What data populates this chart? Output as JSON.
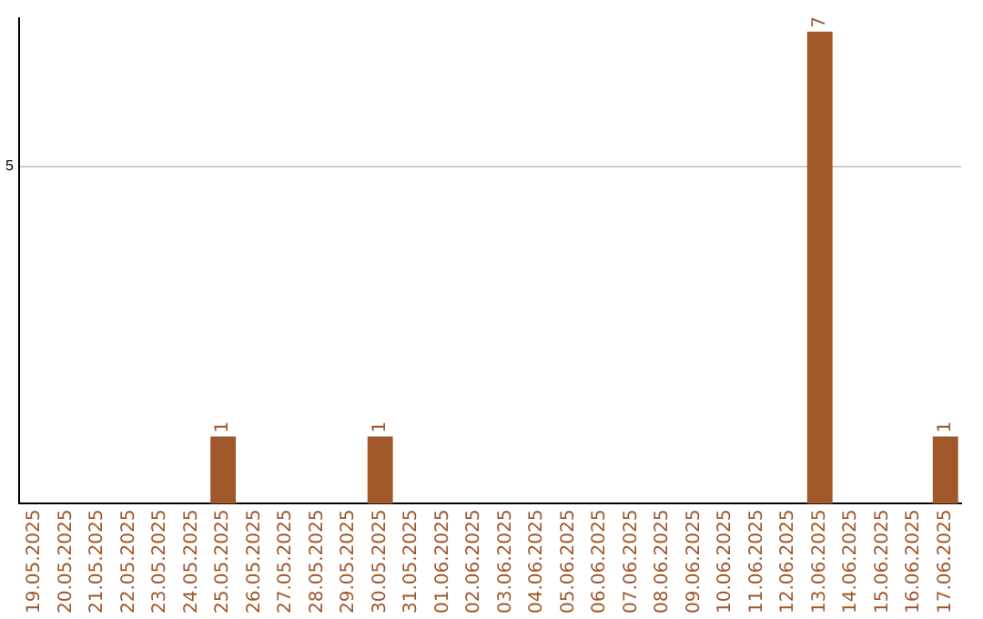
{
  "chart_data": {
    "type": "bar",
    "categories": [
      "19.05.2025",
      "20.05.2025",
      "21.05.2025",
      "22.05.2025",
      "23.05.2025",
      "24.05.2025",
      "25.05.2025",
      "26.05.2025",
      "27.05.2025",
      "28.05.2025",
      "29.05.2025",
      "30.05.2025",
      "31.05.2025",
      "01.06.2025",
      "02.06.2025",
      "03.06.2025",
      "04.06.2025",
      "05.06.2025",
      "06.06.2025",
      "07.06.2025",
      "08.06.2025",
      "09.06.2025",
      "10.06.2025",
      "11.06.2025",
      "12.06.2025",
      "13.06.2025",
      "14.06.2025",
      "15.06.2025",
      "16.06.2025",
      "17.06.2025"
    ],
    "values": [
      0,
      0,
      0,
      0,
      0,
      0,
      1,
      0,
      0,
      0,
      0,
      1,
      0,
      0,
      0,
      0,
      0,
      0,
      0,
      0,
      0,
      0,
      0,
      0,
      0,
      7,
      0,
      0,
      0,
      1
    ],
    "value_labels": [
      null,
      null,
      null,
      null,
      null,
      null,
      "1",
      null,
      null,
      null,
      null,
      "1",
      null,
      null,
      null,
      null,
      null,
      null,
      null,
      null,
      null,
      null,
      null,
      null,
      null,
      "7",
      null,
      null,
      null,
      "1"
    ],
    "color": "#a0572a",
    "ylim": [
      0,
      7.2
    ],
    "yticks": [
      5
    ],
    "grid": "y",
    "legend": false
  }
}
